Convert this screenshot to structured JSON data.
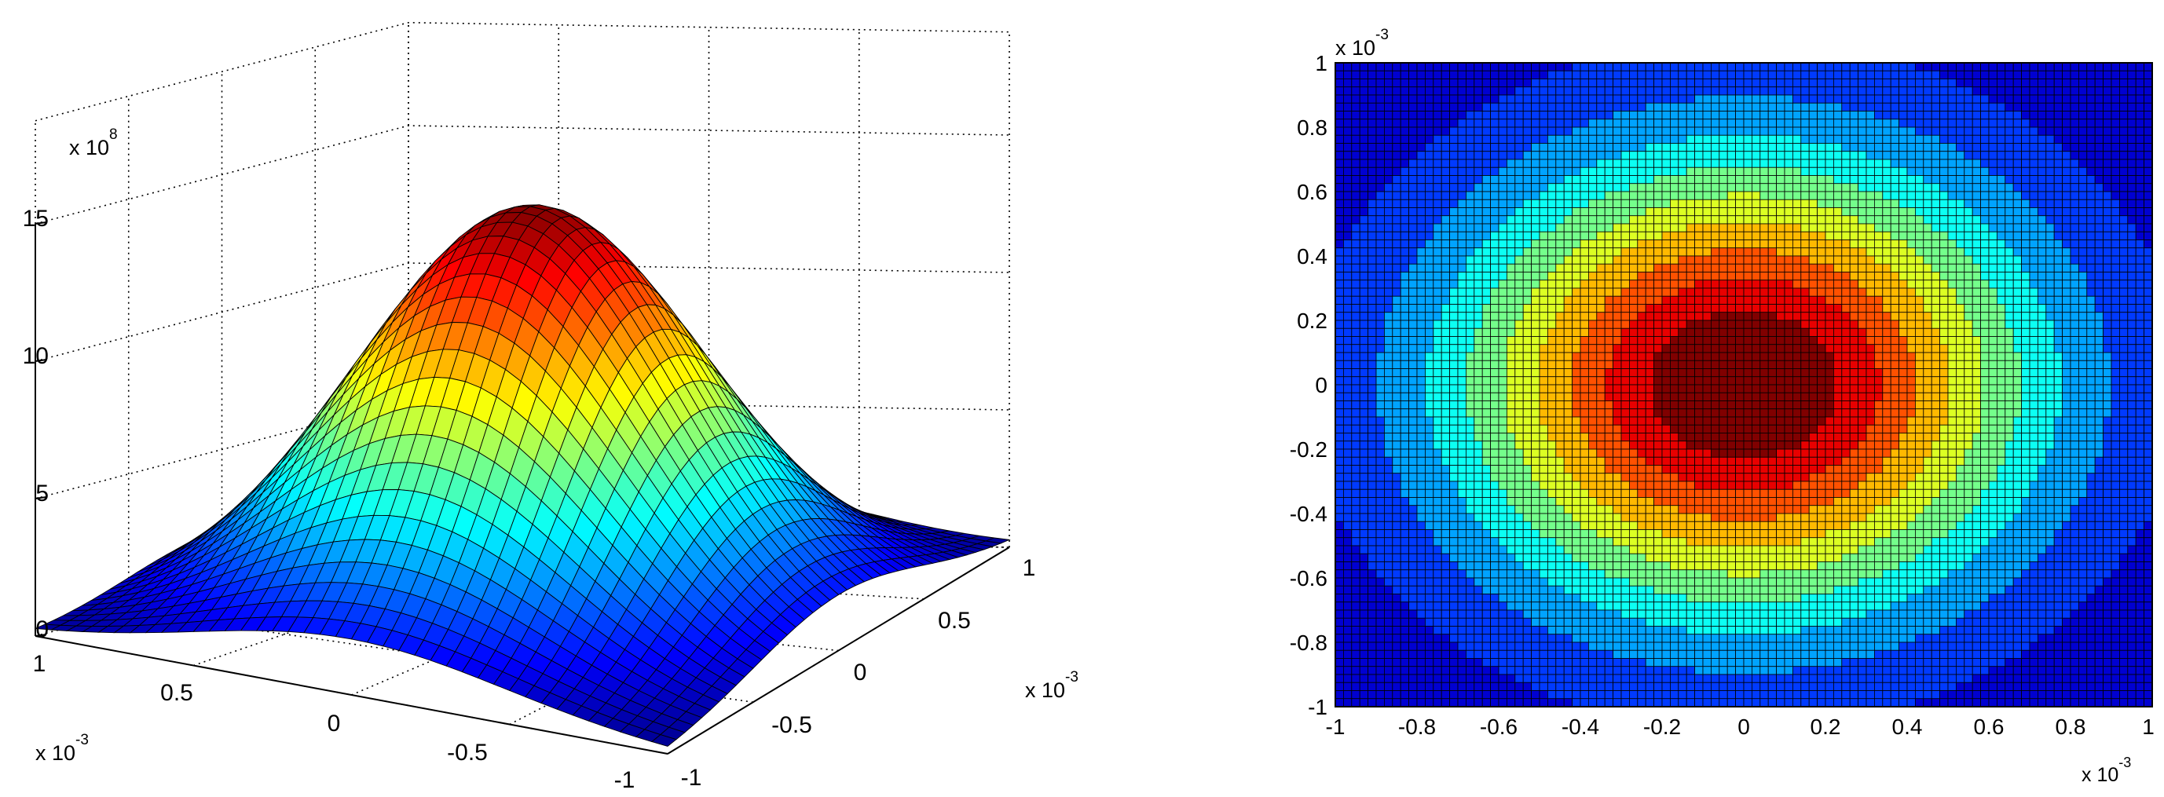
{
  "chart_data": [
    {
      "type": "surface",
      "function": "gaussian",
      "peak": 15,
      "sigma_fraction": 0.5,
      "x_axis": {
        "range": [
          -1,
          1
        ],
        "ticks": [
          "1",
          "0.5",
          "0",
          "-0.5",
          "-1"
        ],
        "exponent_label": "x 10",
        "exponent": "-3"
      },
      "y_axis": {
        "range": [
          -1,
          1
        ],
        "ticks": [
          "-1",
          "-0.5",
          "0",
          "0.5",
          "1"
        ],
        "exponent_label": "x 10",
        "exponent": "-3"
      },
      "z_axis": {
        "range": [
          0,
          15
        ],
        "ticks": [
          "0",
          "5",
          "10",
          "15"
        ],
        "exponent_label": "x 10",
        "exponent": "8"
      },
      "grid": true,
      "colormap": "jet"
    },
    {
      "type": "heatmap",
      "function": "gaussian",
      "peak": 15,
      "sigma_fraction": 0.5,
      "x_axis": {
        "range": [
          -1,
          1
        ],
        "ticks": [
          "-1",
          "-0.8",
          "-0.6",
          "-0.4",
          "-0.2",
          "0",
          "0.2",
          "0.4",
          "0.6",
          "0.8",
          "1"
        ],
        "exponent_label": "x 10",
        "exponent": "-3"
      },
      "y_axis": {
        "range": [
          -1,
          1
        ],
        "ticks": [
          "1",
          "0.8",
          "0.6",
          "0.4",
          "0.2",
          "0",
          "-0.2",
          "-0.4",
          "-0.6",
          "-0.8",
          "-1"
        ],
        "exponent_label": "x 10",
        "exponent": "-3"
      },
      "grid": false,
      "colormap": "jet"
    }
  ]
}
